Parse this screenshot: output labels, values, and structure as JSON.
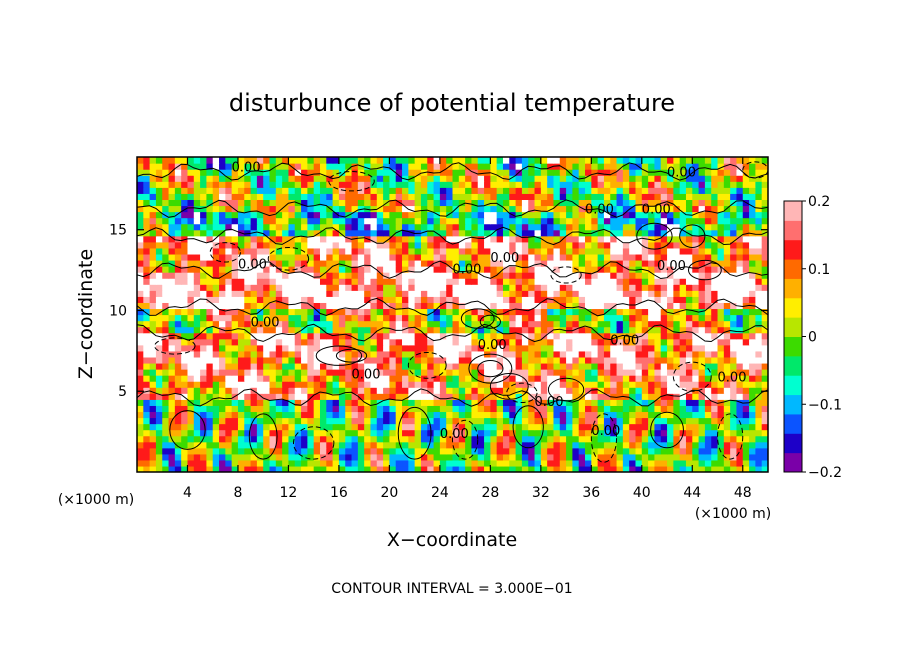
{
  "chart_data": {
    "type": "heatmap",
    "title": "disturbunce of potential temperature",
    "xlabel": "X−coordinate",
    "ylabel": "Z−coordinate",
    "x_unit_label": "(×1000 m)",
    "y_unit_label": "(×1000 m)",
    "xlim": [
      0,
      50
    ],
    "ylim": [
      0,
      19.5
    ],
    "x_ticks": [
      4,
      8,
      12,
      16,
      20,
      24,
      28,
      32,
      36,
      40,
      44,
      48
    ],
    "y_ticks": [
      5,
      10,
      15
    ],
    "colorbar": {
      "range": [
        -0.2,
        0.2
      ],
      "labels": [
        "0.2",
        "0.1",
        "0",
        "−0.1",
        "−0.2"
      ],
      "colors": [
        "#7a00a8",
        "#1d00c8",
        "#0b54ff",
        "#00b8ff",
        "#00ffd0",
        "#00e86a",
        "#3cdb00",
        "#b8e600",
        "#ffee00",
        "#ffb000",
        "#ff6a00",
        "#ff1a1a",
        "#ff6f6f",
        "#ffb6b6"
      ]
    },
    "contour_labels": [
      "0.00",
      "0.00",
      "0.00",
      "0.00",
      "0.00",
      "0.00",
      "0.00",
      "0.00",
      "0.00",
      "0.00",
      "0.00",
      "0.00",
      "0.00",
      "0.00",
      "0.00",
      "0.00"
    ],
    "footnote": "CONTOUR INTERVAL = 3.000E−01",
    "grid": false,
    "legend": "right colorbar"
  }
}
